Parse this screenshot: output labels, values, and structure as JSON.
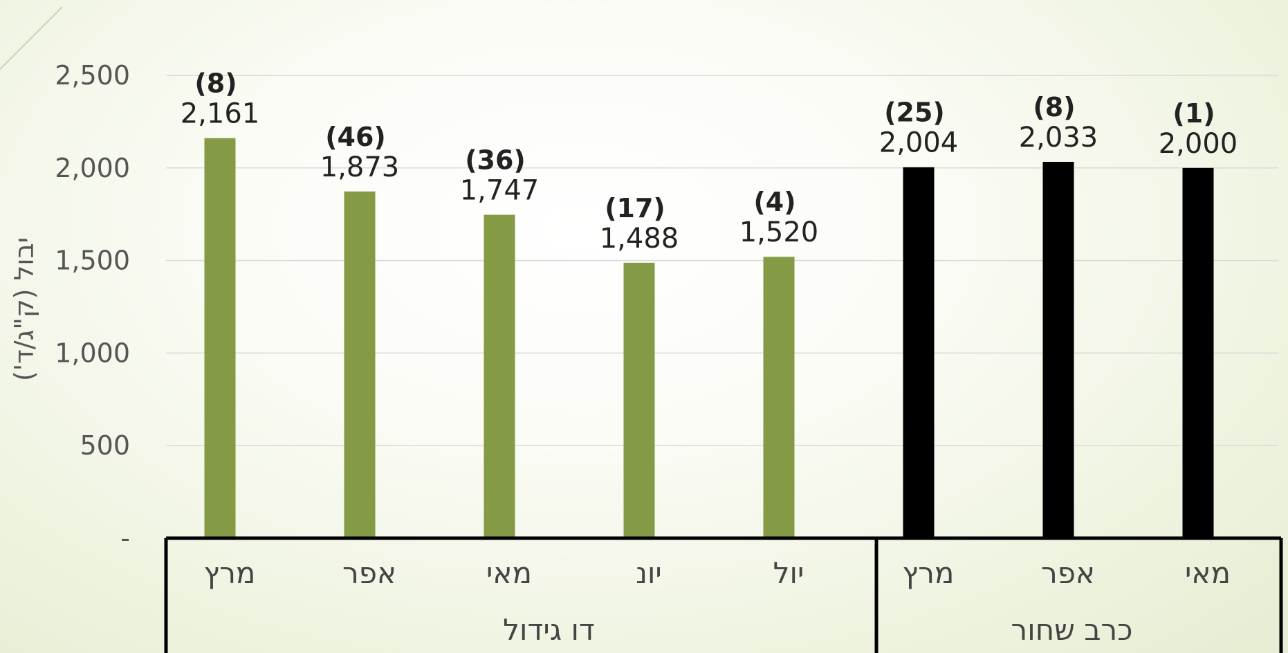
{
  "chart_data": {
    "type": "bar",
    "ylabel": "יבול (ק\"ג/ד')",
    "ylim": [
      0,
      2500
    ],
    "yticks": [
      {
        "value": 0,
        "label": "-"
      },
      {
        "value": 500,
        "label": "500"
      },
      {
        "value": 1000,
        "label": "1,000"
      },
      {
        "value": 1500,
        "label": "1,500"
      },
      {
        "value": 2000,
        "label": "2,000"
      },
      {
        "value": 2500,
        "label": "2,500"
      }
    ],
    "grid": true,
    "groups": [
      {
        "name": "דו גידול",
        "color": "#849a45",
        "bars": [
          {
            "category": "מרץ",
            "value": 2161,
            "value_label": "2,161",
            "count_label": "(8)"
          },
          {
            "category": "אפר",
            "value": 1873,
            "value_label": "1,873",
            "count_label": "(46)"
          },
          {
            "category": "מאי",
            "value": 1747,
            "value_label": "1,747",
            "count_label": "(36)"
          },
          {
            "category": "יונ",
            "value": 1488,
            "value_label": "1,488",
            "count_label": "(17)"
          },
          {
            "category": "יול",
            "value": 1520,
            "value_label": "1,520",
            "count_label": "(4)"
          }
        ]
      },
      {
        "name": "כרב שחור",
        "color": "#000000",
        "bars": [
          {
            "category": "מרץ",
            "value": 2004,
            "value_label": "2,004",
            "count_label": "(25)"
          },
          {
            "category": "אפר",
            "value": 2033,
            "value_label": "2,033",
            "count_label": "(8)"
          },
          {
            "category": "מאי",
            "value": 2000,
            "value_label": "2,000",
            "count_label": "(1)"
          }
        ]
      }
    ]
  }
}
